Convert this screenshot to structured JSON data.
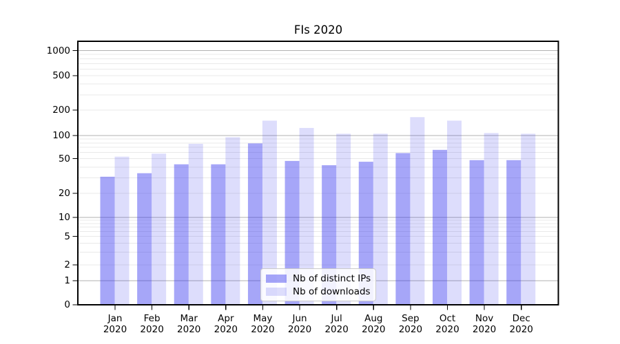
{
  "chart_data": {
    "type": "bar",
    "title": "FIs 2020",
    "categories": [
      {
        "month": "Jan",
        "year": "2020"
      },
      {
        "month": "Feb",
        "year": "2020"
      },
      {
        "month": "Mar",
        "year": "2020"
      },
      {
        "month": "Apr",
        "year": "2020"
      },
      {
        "month": "May",
        "year": "2020"
      },
      {
        "month": "Jun",
        "year": "2020"
      },
      {
        "month": "Jul",
        "year": "2020"
      },
      {
        "month": "Aug",
        "year": "2020"
      },
      {
        "month": "Sep",
        "year": "2020"
      },
      {
        "month": "Oct",
        "year": "2020"
      },
      {
        "month": "Nov",
        "year": "2020"
      },
      {
        "month": "Dec",
        "year": "2020"
      }
    ],
    "series": [
      {
        "name": "Nb of distinct IPs",
        "color_key": "distinct_ips",
        "values": [
          31,
          34,
          43,
          43,
          79,
          47,
          42,
          46,
          59,
          65,
          48,
          48
        ]
      },
      {
        "name": "Nb of downloads",
        "color_key": "downloads",
        "values": [
          53,
          58,
          78,
          95,
          150,
          123,
          105,
          105,
          165,
          150,
          107,
          105
        ]
      }
    ],
    "xlabel": "",
    "ylabel": "",
    "yscale": "symlog",
    "ylim": [
      0,
      1290
    ],
    "yticks": [
      0,
      1,
      2,
      5,
      10,
      20,
      50,
      100,
      200,
      500,
      1000
    ],
    "grid": "both",
    "legend_position": "lower center"
  },
  "colors": {
    "distinct_ips": "rgba(43,43,238,0.42)",
    "downloads": "rgba(43,43,238,0.16)",
    "major_gridline": "#b0b0b0",
    "minor_gridline": "#e9e9e9",
    "axis": "#000000",
    "legend_border": "#cbcbcb",
    "background": "#ffffff"
  }
}
